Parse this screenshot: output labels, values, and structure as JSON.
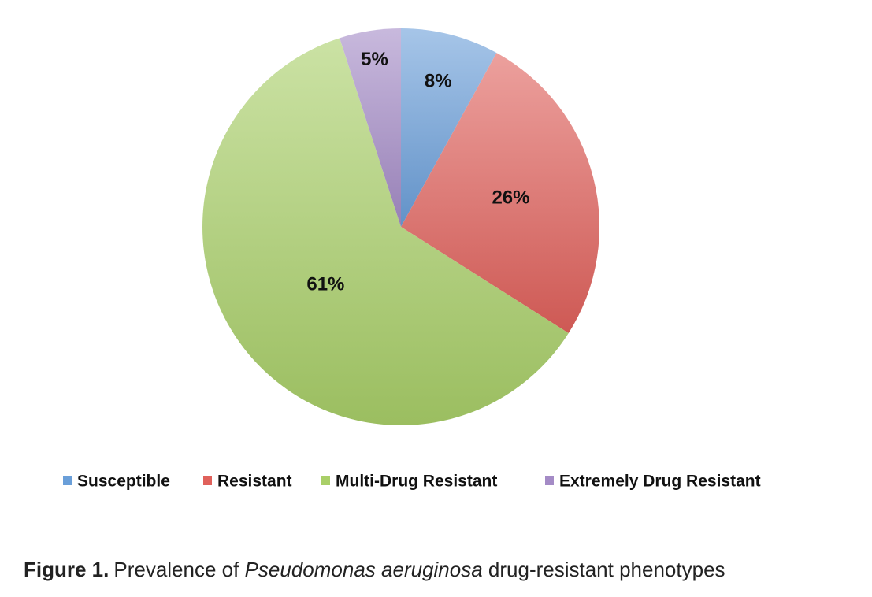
{
  "chart_data": {
    "type": "pie",
    "categories": [
      "Susceptible",
      "Resistant",
      "Multi-Drug Resistant",
      "Extremely Drug Resistant"
    ],
    "values": [
      8,
      26,
      61,
      5
    ],
    "value_labels": [
      "8%",
      "26%",
      "61%",
      "5%"
    ],
    "colors": [
      "#6a9fd9",
      "#e0615b",
      "#a9cf68",
      "#a48bc6"
    ],
    "legend": "bottom"
  },
  "caption": {
    "label": "Figure 1.",
    "text_before": "Prevalence of ",
    "species": "Pseudomonas aeruginosa",
    "text_after": " drug-resistant phenotypes"
  }
}
